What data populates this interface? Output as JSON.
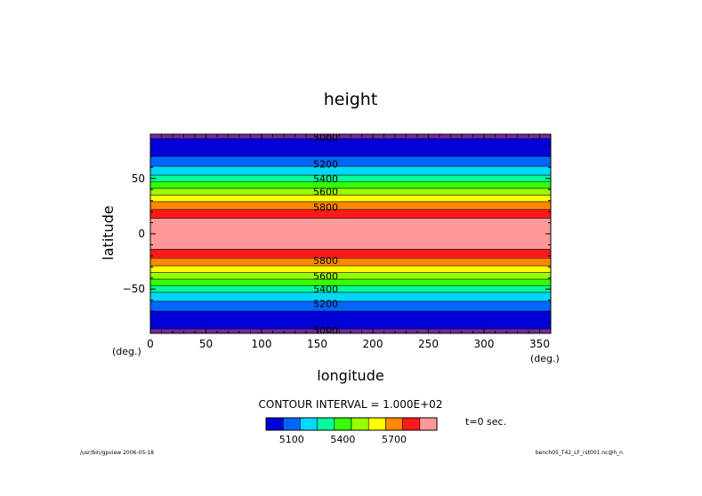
{
  "chart_data": {
    "type": "heatmap",
    "title": "height",
    "xlabel": "longitude",
    "ylabel": "latitude",
    "x_unit": "(deg.)",
    "y_unit": "(deg.)",
    "xlim": [
      0,
      360
    ],
    "ylim": [
      -90,
      90
    ],
    "x_ticks": [
      0,
      50,
      100,
      150,
      200,
      250,
      300,
      350
    ],
    "y_ticks": [
      -50,
      0,
      50
    ],
    "y_tick_labels": [
      "−50",
      "0",
      "50"
    ],
    "bands": [
      {
        "lat_min": -90,
        "lat_max": -86,
        "color": "#7a2aa3"
      },
      {
        "lat_min": -86,
        "lat_max": -70,
        "color": "#0000d8"
      },
      {
        "lat_min": -70,
        "lat_max": -61,
        "color": "#0066ff"
      },
      {
        "lat_min": -61,
        "lat_max": -53,
        "color": "#00d8ff"
      },
      {
        "lat_min": -53,
        "lat_max": -47,
        "color": "#00ff99"
      },
      {
        "lat_min": -47,
        "lat_max": -41,
        "color": "#33ff00"
      },
      {
        "lat_min": -41,
        "lat_max": -35,
        "color": "#99ff00"
      },
      {
        "lat_min": -35,
        "lat_max": -29,
        "color": "#ffff00"
      },
      {
        "lat_min": -29,
        "lat_max": -22,
        "color": "#ff8800"
      },
      {
        "lat_min": -22,
        "lat_max": -14,
        "color": "#ff1a1a"
      },
      {
        "lat_min": -14,
        "lat_max": 14,
        "color": "#ff9999"
      },
      {
        "lat_min": 14,
        "lat_max": 22,
        "color": "#ff1a1a"
      },
      {
        "lat_min": 22,
        "lat_max": 29,
        "color": "#ff8800"
      },
      {
        "lat_min": 29,
        "lat_max": 35,
        "color": "#ffff00"
      },
      {
        "lat_min": 35,
        "lat_max": 41,
        "color": "#99ff00"
      },
      {
        "lat_min": 41,
        "lat_max": 47,
        "color": "#33ff00"
      },
      {
        "lat_min": 47,
        "lat_max": 53,
        "color": "#00ff99"
      },
      {
        "lat_min": 53,
        "lat_max": 61,
        "color": "#00d8ff"
      },
      {
        "lat_min": 61,
        "lat_max": 70,
        "color": "#0066ff"
      },
      {
        "lat_min": 70,
        "lat_max": 86,
        "color": "#0000d8"
      },
      {
        "lat_min": 86,
        "lat_max": 90,
        "color": "#7a2aa3"
      }
    ],
    "contour_labels": [
      {
        "text": "5000",
        "lat": 87
      },
      {
        "text": "5200",
        "lat": 63
      },
      {
        "text": "5400",
        "lat": 50
      },
      {
        "text": "5600",
        "lat": 38
      },
      {
        "text": "5800",
        "lat": 24
      },
      {
        "text": "5800",
        "lat": -24
      },
      {
        "text": "5600",
        "lat": -38
      },
      {
        "text": "5400",
        "lat": -50
      },
      {
        "text": "5200",
        "lat": -63
      },
      {
        "text": "5000",
        "lat": -87
      }
    ],
    "contour_interval_text": "CONTOUR INTERVAL = 1.000E+02",
    "colorbar": {
      "colors": [
        "#0000d8",
        "#0066ff",
        "#00d8ff",
        "#00ff99",
        "#33ff00",
        "#99ff00",
        "#ffff00",
        "#ff8800",
        "#ff1a1a",
        "#ff9999"
      ],
      "labels": [
        {
          "text": "5100",
          "index": 1
        },
        {
          "text": "5400",
          "index": 4
        },
        {
          "text": "5700",
          "index": 7
        }
      ]
    },
    "time_label": "t=0 sec.",
    "footer_left": "/usr/bin/gpview  2006-05-18",
    "footer_right": "bench05_T42_LF_rst001.nc@h_n"
  }
}
